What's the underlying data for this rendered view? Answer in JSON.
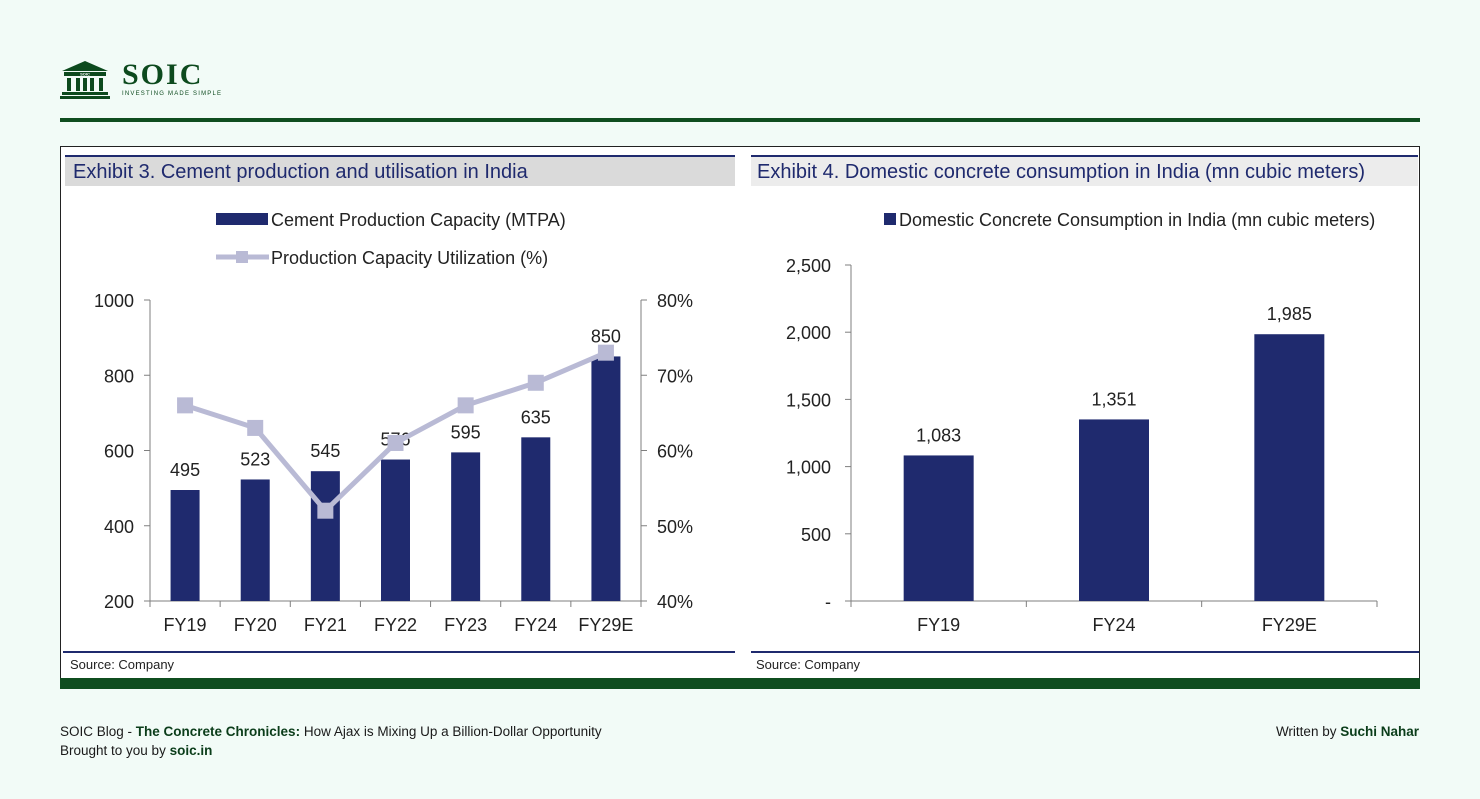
{
  "brand": {
    "name": "SOIC",
    "tagline": "INVESTING MADE SIMPLE",
    "emblem_text": "SOIC",
    "color": "#0d4a1e"
  },
  "colors": {
    "bar": "#1f2a6e",
    "line": "#b9bad5",
    "accent_green": "#0f4d1f"
  },
  "exhibit3": {
    "title": "Exhibit 3. Cement production and utilisation in India",
    "source": "Source: Company"
  },
  "exhibit4": {
    "title": "Exhibit 4. Domestic concrete consumption in India (mn cubic meters)",
    "source": "Source: Company"
  },
  "footer": {
    "blog_prefix": "SOIC Blog - ",
    "blog_title": "The Concrete Chronicles:",
    "blog_subtitle": " How Ajax is Mixing Up a Billion-Dollar Opportunity",
    "brought_prefix": "Brought to you by ",
    "brought_site": "soic.in",
    "written_prefix": "Written by ",
    "author": "Suchi Nahar"
  },
  "chart_data": [
    {
      "type": "bar",
      "categories": [
        "FY19",
        "FY20",
        "FY21",
        "FY22",
        "FY23",
        "FY24",
        "FY29E"
      ],
      "series": [
        {
          "name": "Cement Production Capacity (MTPA)",
          "type": "bar",
          "axis": "left",
          "values": [
            495,
            523,
            545,
            576,
            595,
            635,
            850
          ]
        },
        {
          "name": "Production Capacity Utilization (%)",
          "type": "line",
          "axis": "right",
          "values": [
            66,
            63,
            52,
            61,
            66,
            69,
            73
          ]
        }
      ],
      "ylim": [
        200,
        1000
      ],
      "yticks": [
        "200",
        "400",
        "600",
        "800",
        "1000"
      ],
      "y2lim": [
        40,
        80
      ],
      "y2ticks": [
        "40%",
        "50%",
        "60%",
        "70%",
        "80%"
      ],
      "legend": "top"
    },
    {
      "type": "bar",
      "categories": [
        "FY19",
        "FY24",
        "FY29E"
      ],
      "series": [
        {
          "name": "Domestic Concrete Consumption in India (mn cubic meters)",
          "values": [
            1083,
            1351,
            1985
          ]
        }
      ],
      "data_labels": [
        "1,083",
        "1,351",
        "1,985"
      ],
      "ylim": [
        0,
        2500
      ],
      "yticks": [
        "-",
        "500",
        "1,000",
        "1,500",
        "2,000",
        "2,500"
      ],
      "legend": "top"
    }
  ]
}
